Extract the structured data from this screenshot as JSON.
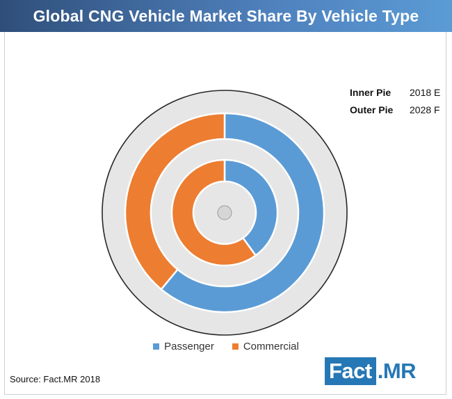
{
  "title": "Global CNG Vehicle Market Share By Vehicle Type",
  "side_legend": {
    "inner_label": "Inner Pie",
    "inner_value": "2018 E",
    "outer_label": "Outer Pie",
    "outer_value": "2028 F"
  },
  "source": "Source: Fact.MR  2018",
  "logo": {
    "part1": "Fact",
    "part2": ".MR"
  },
  "colors": {
    "passenger": "#5b9bd5",
    "commercial": "#ed7d31",
    "track": "#e6e6e6",
    "border": "#262626"
  },
  "chart_data": {
    "type": "pie",
    "categories": [
      "Passenger",
      "Commercial"
    ],
    "series": [
      {
        "name": "2018 E",
        "ring": "inner",
        "values": [
          40,
          60
        ]
      },
      {
        "name": "2028 F",
        "ring": "outer",
        "values": [
          61,
          39
        ]
      }
    ],
    "legend": [
      "Passenger",
      "Commercial"
    ],
    "legend_position": "bottom"
  }
}
